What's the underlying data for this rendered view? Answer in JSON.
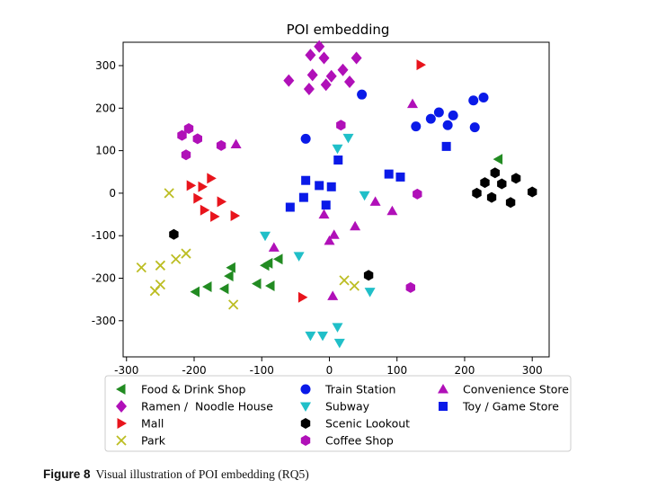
{
  "chart_data": {
    "type": "scatter",
    "title": "POI embedding",
    "xlabel": "",
    "ylabel": "",
    "xlim": [
      -305,
      325
    ],
    "ylim": [
      -385,
      355
    ],
    "xticks": [
      -300,
      -200,
      -100,
      0,
      100,
      200,
      300
    ],
    "yticks": [
      300,
      200,
      100,
      0,
      -100,
      -200,
      -300
    ],
    "grid": false,
    "legend_position": "bottom",
    "series": [
      {
        "name": "Food & Drink Shop",
        "marker": "triangle-left",
        "color": "#228B22",
        "points": [
          [
            250,
            80
          ],
          [
            -145,
            -175
          ],
          [
            -148,
            -195
          ],
          [
            -155,
            -225
          ],
          [
            -180,
            -220
          ],
          [
            -198,
            -232
          ],
          [
            -90,
            -165
          ],
          [
            -95,
            -170
          ],
          [
            -75,
            -155
          ],
          [
            -107,
            -213
          ],
          [
            -87,
            -218
          ]
        ]
      },
      {
        "name": "Ramen /  Noodle House",
        "marker": "diamond",
        "color": "#B010B8",
        "points": [
          [
            -15,
            345
          ],
          [
            -28,
            325
          ],
          [
            -8,
            318
          ],
          [
            40,
            318
          ],
          [
            -60,
            265
          ],
          [
            -25,
            278
          ],
          [
            3,
            275
          ],
          [
            20,
            290
          ],
          [
            30,
            262
          ],
          [
            -30,
            245
          ],
          [
            -5,
            255
          ]
        ]
      },
      {
        "name": "Mall",
        "marker": "triangle-right",
        "color": "#E8141C",
        "points": [
          [
            135,
            302
          ],
          [
            -205,
            18
          ],
          [
            -188,
            15
          ],
          [
            -175,
            35
          ],
          [
            -195,
            -12
          ],
          [
            -160,
            -20
          ],
          [
            -185,
            -40
          ],
          [
            -170,
            -55
          ],
          [
            -140,
            -53
          ],
          [
            -40,
            -245
          ]
        ]
      },
      {
        "name": "Park",
        "marker": "x",
        "color": "#BCBD22",
        "points": [
          [
            -237,
            0
          ],
          [
            -278,
            -175
          ],
          [
            -250,
            -170
          ],
          [
            -227,
            -155
          ],
          [
            -212,
            -142
          ],
          [
            -258,
            -230
          ],
          [
            -250,
            -215
          ],
          [
            -142,
            -262
          ],
          [
            22,
            -205
          ],
          [
            37,
            -218
          ]
        ]
      },
      {
        "name": "Train Station",
        "marker": "circle",
        "color": "#0A1AE8",
        "points": [
          [
            48,
            232
          ],
          [
            -35,
            128
          ],
          [
            128,
            157
          ],
          [
            150,
            175
          ],
          [
            162,
            190
          ],
          [
            175,
            160
          ],
          [
            183,
            183
          ],
          [
            213,
            218
          ],
          [
            228,
            225
          ],
          [
            215,
            155
          ]
        ]
      },
      {
        "name": "Subway",
        "marker": "triangle-down",
        "color": "#20BFC8",
        "points": [
          [
            28,
            130
          ],
          [
            12,
            105
          ],
          [
            -95,
            -100
          ],
          [
            -45,
            -148
          ],
          [
            52,
            -5
          ],
          [
            60,
            -232
          ],
          [
            -28,
            -335
          ],
          [
            -10,
            -335
          ],
          [
            12,
            -315
          ],
          [
            15,
            -352
          ]
        ]
      },
      {
        "name": "Scenic Lookout",
        "marker": "hexagon",
        "color": "#000000",
        "points": [
          [
            -230,
            -97
          ],
          [
            58,
            -193
          ],
          [
            245,
            48
          ],
          [
            230,
            25
          ],
          [
            255,
            22
          ],
          [
            276,
            35
          ],
          [
            300,
            3
          ],
          [
            218,
            0
          ],
          [
            240,
            -10
          ],
          [
            268,
            -22
          ]
        ]
      },
      {
        "name": "Coffee Shop",
        "marker": "hexagon",
        "color": "#B010B8",
        "points": [
          [
            -208,
            152
          ],
          [
            -218,
            136
          ],
          [
            -195,
            128
          ],
          [
            -212,
            90
          ],
          [
            -160,
            112
          ],
          [
            17,
            160
          ],
          [
            130,
            -2
          ],
          [
            120,
            -222
          ]
        ]
      },
      {
        "name": "Convenience Store",
        "marker": "triangle-up",
        "color": "#B010B8",
        "points": [
          [
            123,
            210
          ],
          [
            -138,
            115
          ],
          [
            -82,
            -128
          ],
          [
            -8,
            -50
          ],
          [
            68,
            -20
          ],
          [
            93,
            -42
          ],
          [
            38,
            -78
          ],
          [
            7,
            -98
          ],
          [
            0,
            -112
          ],
          [
            5,
            -242
          ]
        ]
      },
      {
        "name": "Toy / Game Store",
        "marker": "square",
        "color": "#0A1AE8",
        "points": [
          [
            173,
            110
          ],
          [
            13,
            78
          ],
          [
            -35,
            30
          ],
          [
            -15,
            18
          ],
          [
            3,
            15
          ],
          [
            -38,
            -10
          ],
          [
            -58,
            -33
          ],
          [
            -5,
            -28
          ],
          [
            88,
            45
          ],
          [
            105,
            38
          ]
        ]
      }
    ]
  },
  "caption": {
    "label": "Figure 8",
    "text": "Visual illustration of POI embedding (RQ5)"
  }
}
